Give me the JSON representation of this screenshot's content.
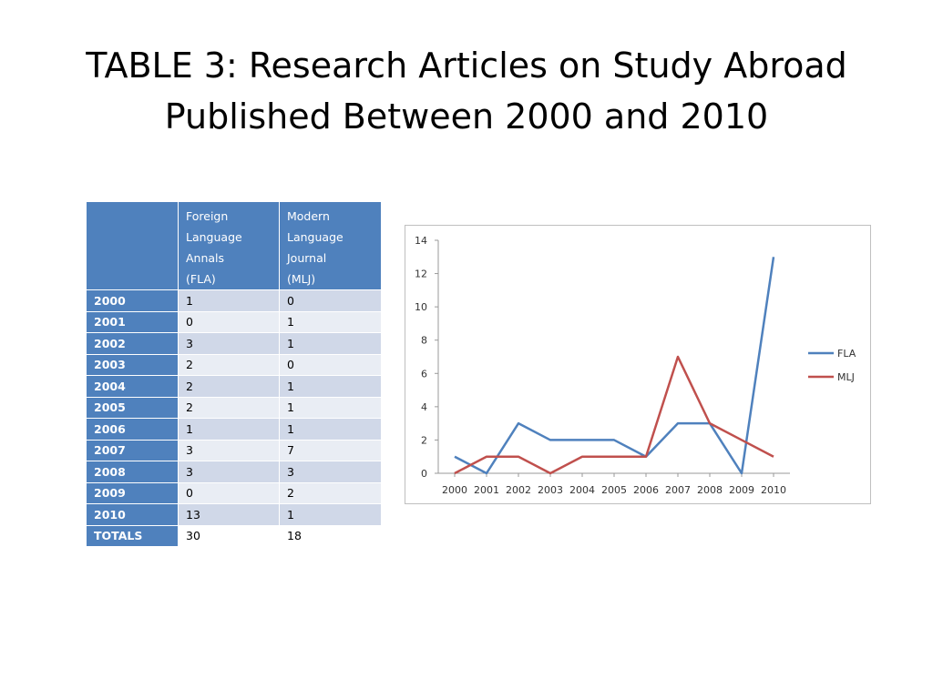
{
  "slide": {
    "title_line1": "TABLE 3: Research Articles on Study Abroad",
    "title_line2": "Published Between 2000 and 2010"
  },
  "table": {
    "headers": {
      "corner": "",
      "fla": [
        "Foreign",
        "Language",
        "Annals",
        "(FLA)"
      ],
      "mlj": [
        "Modern",
        "Language",
        "Journal",
        "(MLJ)"
      ]
    },
    "rows": [
      {
        "year": "2000",
        "fla": "1",
        "mlj": "0"
      },
      {
        "year": "2001",
        "fla": "0",
        "mlj": "1"
      },
      {
        "year": "2002",
        "fla": "3",
        "mlj": "1"
      },
      {
        "year": "2003",
        "fla": "2",
        "mlj": "0"
      },
      {
        "year": "2004",
        "fla": "2",
        "mlj": "1"
      },
      {
        "year": "2005",
        "fla": "2",
        "mlj": "1"
      },
      {
        "year": "2006",
        "fla": "1",
        "mlj": "1"
      },
      {
        "year": "2007",
        "fla": "3",
        "mlj": "7"
      },
      {
        "year": "2008",
        "fla": "3",
        "mlj": "3"
      },
      {
        "year": "2009",
        "fla": "0",
        "mlj": "2"
      },
      {
        "year": "2010",
        "fla": "13",
        "mlj": "1"
      }
    ],
    "totals": {
      "label": "TOTALS",
      "fla": "30",
      "mlj": "18"
    }
  },
  "chart_data": {
    "type": "line",
    "title": "",
    "xlabel": "",
    "ylabel": "",
    "categories": [
      "2000",
      "2001",
      "2002",
      "2003",
      "2004",
      "2005",
      "2006",
      "2007",
      "2008",
      "2009",
      "2010"
    ],
    "series": [
      {
        "name": "FLA",
        "color": "#4f81bd",
        "values": [
          1,
          0,
          3,
          2,
          2,
          2,
          1,
          3,
          3,
          0,
          13
        ]
      },
      {
        "name": "MLJ",
        "color": "#c0504d",
        "values": [
          0,
          1,
          1,
          0,
          1,
          1,
          1,
          7,
          3,
          2,
          1
        ]
      }
    ],
    "ylim": [
      0,
      14
    ],
    "yticks": [
      0,
      2,
      4,
      6,
      8,
      10,
      12,
      14
    ],
    "grid": false,
    "legend": "right"
  }
}
